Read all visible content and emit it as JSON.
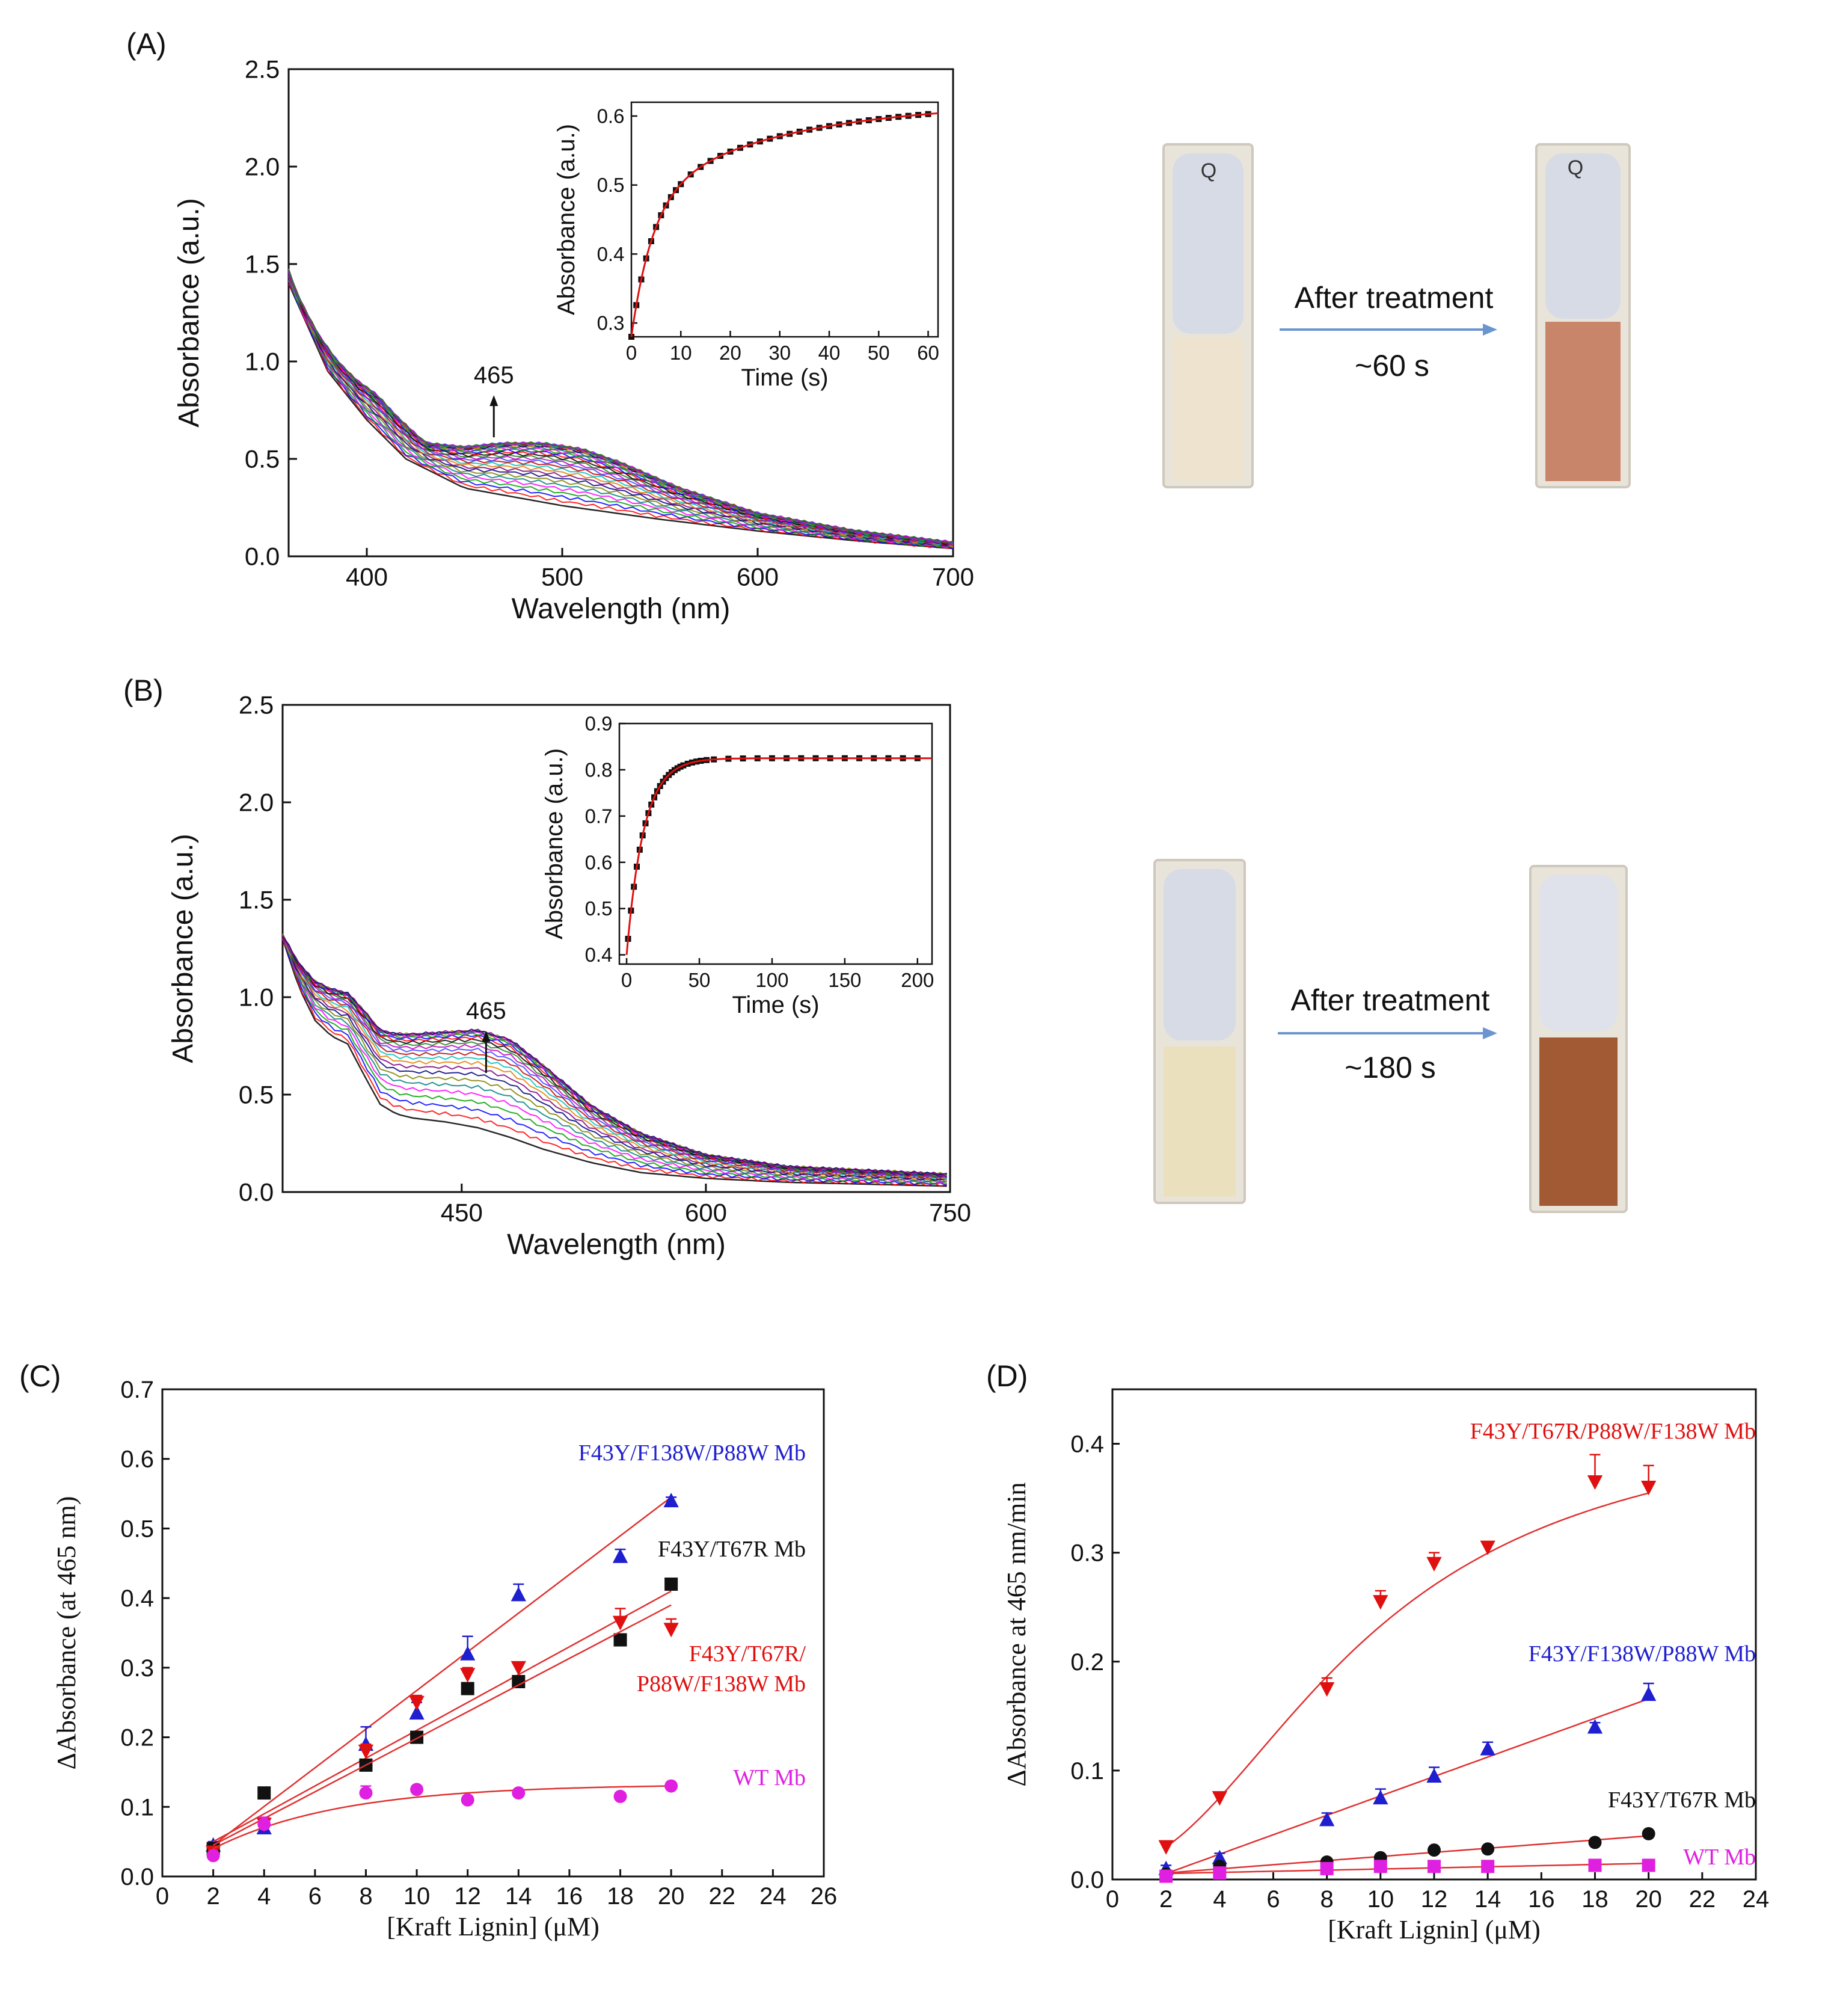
{
  "panels": {
    "A": {
      "label": "(A)",
      "photo_caption_top": "After treatment",
      "photo_caption_bottom": "~60 s",
      "cuvette_mark": "Q",
      "colors": {
        "before": "#ede3cf",
        "after": "#c9856a",
        "arrow": "#6a95cf"
      }
    },
    "B": {
      "label": "(B)",
      "photo_caption_top": "After treatment",
      "photo_caption_bottom": "~180 s",
      "colors": {
        "before": "#ebe0bd",
        "after": "#a25a34",
        "arrow": "#6a95cf"
      }
    },
    "C": {
      "label": "(C)"
    },
    "D": {
      "label": "(D)"
    }
  },
  "chart_data": [
    {
      "id": "A-main",
      "type": "line",
      "xlabel": "Wavelength (nm)",
      "ylabel": "Absorbance (a.u.)",
      "xlim": [
        360,
        700
      ],
      "ylim": [
        0,
        2.5
      ],
      "xticks": [
        400,
        500,
        600,
        700
      ],
      "yticks": [
        0.0,
        0.5,
        1.0,
        1.5,
        2.0,
        2.5
      ],
      "annotation": "465",
      "n_spectra": 30,
      "profile": {
        "x": [
          360,
          365,
          375,
          385,
          395,
          405,
          415,
          430,
          450,
          470,
          490,
          510,
          530,
          560,
          600,
          650,
          700
        ],
        "y": [
          1.45,
          1.3,
          1.1,
          0.96,
          0.86,
          0.78,
          0.66,
          0.5,
          0.44,
          0.42,
          0.39,
          0.35,
          0.3,
          0.22,
          0.14,
          0.08,
          0.04
        ]
      },
      "first_spectrum": {
        "x": [
          360,
          380,
          400,
          420,
          450,
          500,
          550,
          600,
          650,
          700
        ],
        "y": [
          1.4,
          0.95,
          0.7,
          0.5,
          0.35,
          0.26,
          0.19,
          0.13,
          0.08,
          0.04
        ]
      },
      "last_spectrum": {
        "x": [
          360,
          365,
          375,
          385,
          395,
          405,
          415,
          430,
          450,
          470,
          490,
          510,
          530,
          560,
          600,
          650,
          700
        ],
        "y": [
          1.47,
          1.33,
          1.14,
          1.0,
          0.9,
          0.83,
          0.72,
          0.58,
          0.56,
          0.58,
          0.58,
          0.55,
          0.48,
          0.35,
          0.22,
          0.13,
          0.07
        ]
      }
    },
    {
      "id": "A-inset",
      "type": "scatter",
      "xlabel": "Time (s)",
      "ylabel": "Absorbance (a.u.)",
      "xlim": [
        0,
        62
      ],
      "ylim": [
        0.28,
        0.62
      ],
      "xticks": [
        0,
        10,
        20,
        30,
        40,
        50,
        60
      ],
      "yticks": [
        0.3,
        0.4,
        0.5,
        0.6
      ],
      "fit": {
        "a0": 0.28,
        "a1": 0.2,
        "k1": 0.23,
        "a2": 0.14,
        "k2": 0.035
      },
      "points_x": [
        0,
        1,
        2,
        3,
        4,
        5,
        6,
        7,
        8,
        9,
        10,
        12,
        14,
        16,
        18,
        20,
        22,
        24,
        26,
        28,
        30,
        32,
        34,
        36,
        38,
        40,
        42,
        44,
        46,
        48,
        50,
        52,
        54,
        56,
        58,
        60
      ]
    },
    {
      "id": "B-main",
      "type": "line",
      "xlabel": "Wavelength (nm)",
      "ylabel": "Absorbance (a.u.)",
      "xlim": [
        340,
        750
      ],
      "ylim": [
        0,
        2.5
      ],
      "xticks": [
        450,
        600,
        750
      ],
      "yticks": [
        0.0,
        0.5,
        1.0,
        1.5,
        2.0,
        2.5
      ],
      "annotation": "465",
      "n_spectra": 24,
      "profile": {
        "x": [
          340,
          350,
          360,
          370,
          380,
          390,
          400,
          410,
          420,
          440,
          460,
          480,
          500,
          530,
          560,
          600,
          650,
          700,
          750
        ],
        "y": [
          1.3,
          1.15,
          1.05,
          1.0,
          0.98,
          0.9,
          0.8,
          0.78,
          0.78,
          0.79,
          0.8,
          0.75,
          0.62,
          0.42,
          0.28,
          0.18,
          0.12,
          0.1,
          0.08
        ]
      },
      "first_spectrum": {
        "x": [
          340,
          350,
          360,
          370,
          380,
          390,
          400,
          410,
          420,
          440,
          460,
          480,
          500,
          530,
          560,
          600,
          650,
          700,
          750
        ],
        "y": [
          1.3,
          1.05,
          0.88,
          0.8,
          0.76,
          0.6,
          0.45,
          0.4,
          0.38,
          0.36,
          0.33,
          0.28,
          0.22,
          0.15,
          0.1,
          0.07,
          0.05,
          0.04,
          0.03
        ]
      },
      "last_spectrum": {
        "x": [
          340,
          350,
          360,
          370,
          380,
          390,
          400,
          410,
          420,
          440,
          460,
          480,
          500,
          530,
          560,
          600,
          650,
          700,
          750
        ],
        "y": [
          1.32,
          1.17,
          1.08,
          1.04,
          1.02,
          0.93,
          0.83,
          0.81,
          0.81,
          0.82,
          0.83,
          0.78,
          0.65,
          0.44,
          0.3,
          0.19,
          0.13,
          0.11,
          0.09
        ]
      }
    },
    {
      "id": "B-inset",
      "type": "scatter",
      "xlabel": "Time (s)",
      "ylabel": "Absorbance (a.u.)",
      "xlim": [
        -5,
        210
      ],
      "ylim": [
        0.38,
        0.9
      ],
      "xticks": [
        0,
        50,
        100,
        150,
        200
      ],
      "yticks": [
        0.4,
        0.5,
        0.6,
        0.7,
        0.8,
        0.9
      ],
      "fit": {
        "a0": 0.4,
        "a1": 0.425,
        "k1": 0.085
      },
      "points_x": [
        1,
        3,
        5,
        7,
        9,
        11,
        13,
        15,
        17,
        19,
        21,
        23,
        25,
        27,
        29,
        31,
        33,
        35,
        37,
        39,
        42,
        45,
        48,
        51,
        55,
        60,
        70,
        80,
        90,
        100,
        110,
        120,
        130,
        140,
        150,
        160,
        170,
        180,
        190,
        200
      ]
    },
    {
      "id": "C",
      "type": "scatter",
      "xlabel": "[Kraft Lignin] (μM)",
      "ylabel": "ΔAbsorbance (at 465 nm)",
      "xlim": [
        0,
        26
      ],
      "ylim": [
        0,
        0.7
      ],
      "xticks": [
        0,
        2,
        4,
        6,
        8,
        10,
        12,
        14,
        16,
        18,
        20,
        22,
        24,
        26
      ],
      "yticks": [
        0.0,
        0.1,
        0.2,
        0.3,
        0.4,
        0.5,
        0.6,
        0.7
      ],
      "x": [
        2,
        4,
        8,
        10,
        12,
        14,
        18,
        20
      ],
      "series": [
        {
          "name": "F43Y/F138W/P88W Mb",
          "color": "#1f1fd0",
          "marker": "triangle-up",
          "values": [
            0.045,
            0.07,
            0.19,
            0.235,
            0.32,
            0.405,
            0.46,
            0.54
          ],
          "errors": [
            0.005,
            0.01,
            0.025,
            0.015,
            0.025,
            0.015,
            0.01,
            0.005
          ],
          "fit": [
            0.045,
            0.545
          ]
        },
        {
          "name": "F43Y/T67R Mb",
          "color": "#111111",
          "marker": "square",
          "values": [
            0.04,
            0.12,
            0.16,
            0.2,
            0.27,
            0.28,
            0.34,
            0.42
          ],
          "errors": [
            0,
            0,
            0,
            0,
            0,
            0,
            0,
            0
          ],
          "fit": [
            0.05,
            0.41
          ]
        },
        {
          "name": "F43Y/T67R/ P88W/F138W Mb",
          "color": "#e01010",
          "marker": "triangle-down",
          "values": [
            0.035,
            0.075,
            0.18,
            0.25,
            0.29,
            0.3,
            0.365,
            0.355
          ],
          "errors": [
            0.005,
            0.01,
            0.01,
            0.01,
            0.01,
            0.005,
            0.02,
            0.015
          ],
          "fit": [
            0.045,
            0.39
          ]
        },
        {
          "name": "WT Mb",
          "color": "#e020e0",
          "marker": "circle",
          "values": [
            0.03,
            0.075,
            0.12,
            0.125,
            0.11,
            0.12,
            0.115,
            0.13
          ],
          "errors": [
            0.005,
            0.01,
            0.01,
            0.005,
            0.005,
            0.005,
            0.005,
            0.005
          ],
          "fit": [
            0.04,
            0.13
          ]
        }
      ]
    },
    {
      "id": "D",
      "type": "scatter",
      "xlabel": "[Kraft Lignin] (μM)",
      "ylabel": "ΔAbsorbance at 465 nm/min",
      "xlim": [
        0,
        24
      ],
      "ylim": [
        0,
        0.45
      ],
      "xticks": [
        0,
        2,
        4,
        6,
        8,
        10,
        12,
        14,
        16,
        18,
        20,
        22,
        24
      ],
      "yticks": [
        0.0,
        0.1,
        0.2,
        0.3,
        0.4
      ],
      "x": [
        2,
        4,
        8,
        10,
        12,
        14,
        18,
        20
      ],
      "series": [
        {
          "name": "F43Y/T67R/P88W/F138W Mb",
          "color": "#e01010",
          "marker": "triangle-down",
          "values": [
            0.03,
            0.075,
            0.175,
            0.255,
            0.29,
            0.305,
            0.365,
            0.36
          ],
          "errors": [
            0.005,
            0.005,
            0.01,
            0.01,
            0.01,
            0.005,
            0.025,
            0.02
          ]
        },
        {
          "name": "F43Y/F138W/P88W Mb",
          "color": "#1f1fd0",
          "marker": "triangle-up",
          "values": [
            0.01,
            0.02,
            0.055,
            0.075,
            0.095,
            0.12,
            0.14,
            0.17
          ],
          "errors": [
            0.003,
            0.004,
            0.006,
            0.008,
            0.008,
            0.006,
            0.004,
            0.01
          ]
        },
        {
          "name": "F43Y/T67R Mb",
          "color": "#111111",
          "marker": "circle",
          "values": [
            0.005,
            0.012,
            0.016,
            0.02,
            0.027,
            0.028,
            0.034,
            0.042
          ],
          "errors": [
            0,
            0,
            0,
            0,
            0,
            0,
            0,
            0
          ]
        },
        {
          "name": "WT Mb",
          "color": "#e020e0",
          "marker": "square",
          "values": [
            0.003,
            0.006,
            0.01,
            0.012,
            0.012,
            0.012,
            0.013,
            0.013
          ],
          "errors": [
            0,
            0,
            0,
            0,
            0,
            0,
            0,
            0
          ]
        }
      ]
    }
  ]
}
